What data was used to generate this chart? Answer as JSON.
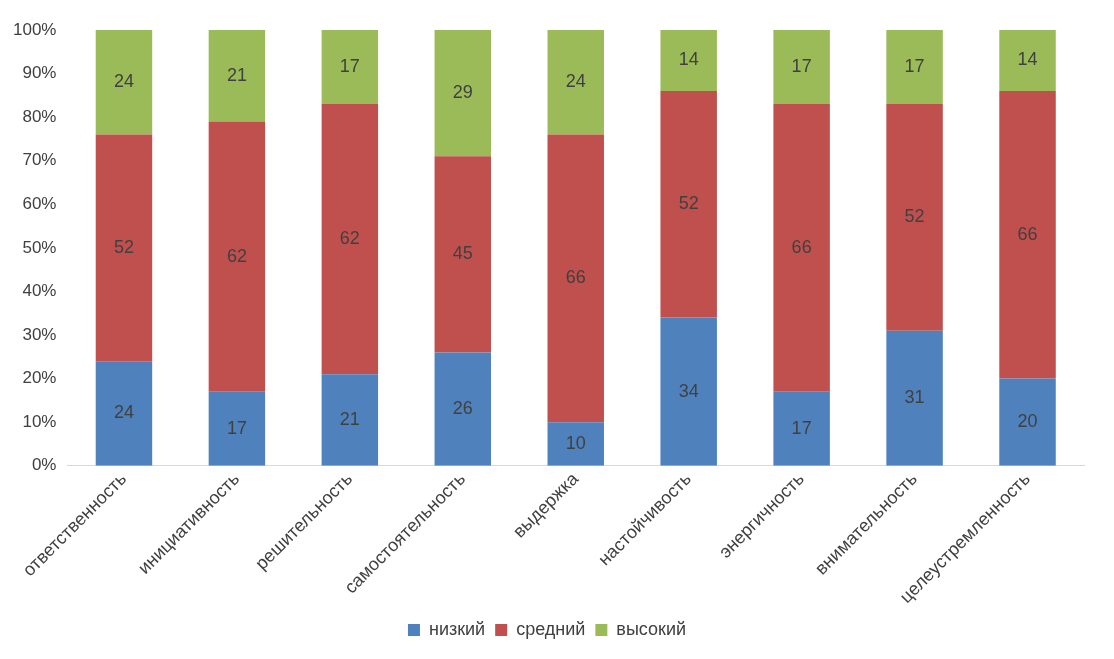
{
  "chart_data": {
    "type": "bar",
    "stacked": true,
    "categories": [
      "ответственность",
      "инициативность",
      "решительность",
      "самостоятельность",
      "выдержка",
      "настойчивость",
      "энергичность",
      "внимательность",
      "целеустремленность"
    ],
    "series": [
      {
        "name": "низкий",
        "color": "#4f81bd",
        "values": [
          24,
          17,
          21,
          26,
          10,
          34,
          17,
          31,
          20
        ]
      },
      {
        "name": "средний",
        "color": "#c0504d",
        "values": [
          52,
          62,
          62,
          45,
          66,
          52,
          66,
          52,
          66
        ]
      },
      {
        "name": "высокий",
        "color": "#9bbb59",
        "values": [
          24,
          21,
          17,
          29,
          24,
          14,
          17,
          17,
          14
        ]
      }
    ],
    "ylim": [
      0,
      100
    ],
    "yticks": [
      {
        "value": 0,
        "label": "0%"
      },
      {
        "value": 10,
        "label": "10%"
      },
      {
        "value": 20,
        "label": "20%"
      },
      {
        "value": 30,
        "label": "30%"
      },
      {
        "value": 40,
        "label": "40%"
      },
      {
        "value": 50,
        "label": "50%"
      },
      {
        "value": 60,
        "label": "60%"
      },
      {
        "value": 70,
        "label": "70%"
      },
      {
        "value": 80,
        "label": "80%"
      },
      {
        "value": 90,
        "label": "90%"
      },
      {
        "value": 100,
        "label": "100%"
      }
    ],
    "data_labels": true,
    "legend": "bottom",
    "grid": false
  }
}
